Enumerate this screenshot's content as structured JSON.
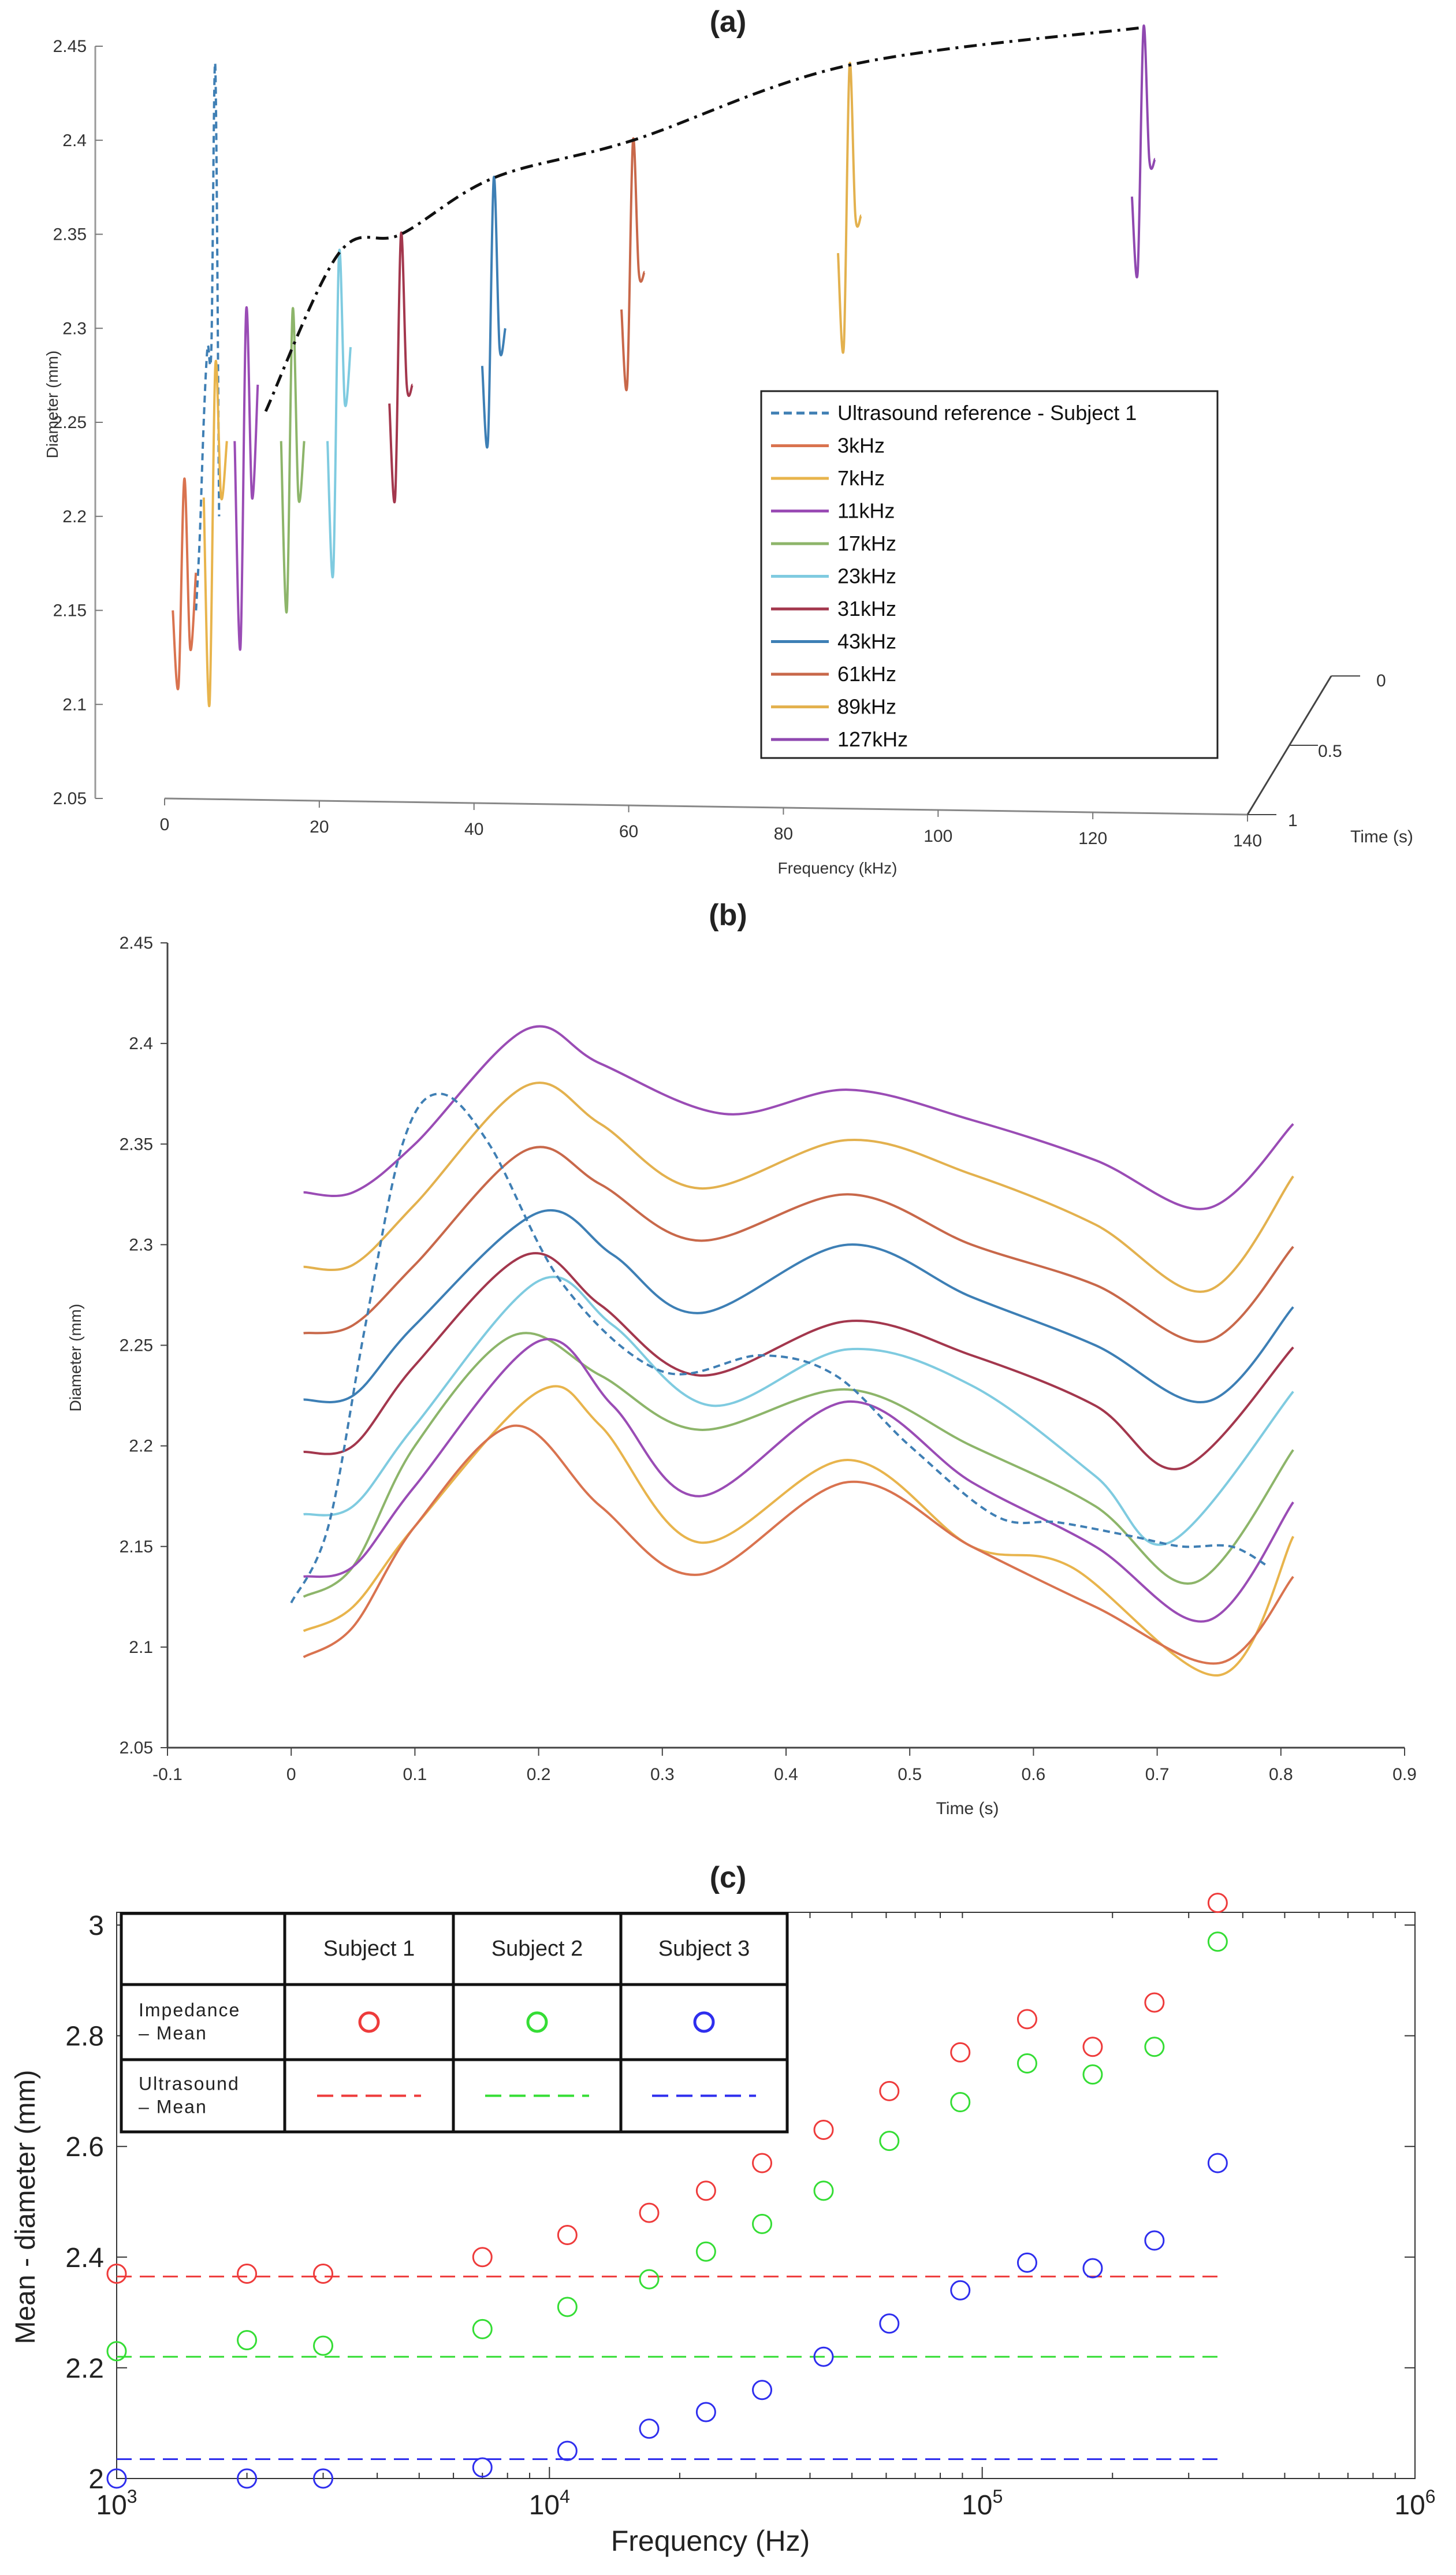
{
  "chart_data": [
    {
      "id": "a",
      "panel_label": "(a)",
      "type": "line",
      "subtype": "3d-waterfall",
      "xlabel": "Frequency (kHz)",
      "ylabel": "Diameter (mm)",
      "zlabel": "Time (s)",
      "xlim": [
        0,
        140
      ],
      "ylim": [
        2.05,
        2.45
      ],
      "zlim": [
        0,
        1
      ],
      "x_ticks": [
        "0",
        "20",
        "40",
        "60",
        "80",
        "100",
        "120",
        "140"
      ],
      "y_ticks": [
        "2.05",
        "2.1",
        "2.15",
        "2.2",
        "2.25",
        "2.3",
        "2.35",
        "2.4",
        "2.45"
      ],
      "z_ticks": [
        "0",
        "0.5",
        "1"
      ],
      "series": [
        {
          "name": "Ultrasound reference - Subject 1",
          "frequency_khz": 6,
          "color": "#3f7fb4",
          "dash": true,
          "values": [
            2.15,
            2.19,
            2.25,
            2.29,
            2.29,
            2.44,
            2.2
          ]
        },
        {
          "name": "3kHz",
          "frequency_khz": 3,
          "color": "#d9734f",
          "values": [
            2.15,
            2.11,
            2.22,
            2.13,
            2.17
          ]
        },
        {
          "name": "7kHz",
          "frequency_khz": 7,
          "color": "#e8b44c",
          "values": [
            2.21,
            2.1,
            2.28,
            2.21,
            2.24
          ]
        },
        {
          "name": "11kHz",
          "frequency_khz": 11,
          "color": "#9a4cb5",
          "values": [
            2.24,
            2.13,
            2.31,
            2.21,
            2.27
          ]
        },
        {
          "name": "17kHz",
          "frequency_khz": 17,
          "color": "#8db56a",
          "values": [
            2.24,
            2.15,
            2.31,
            2.21,
            2.24
          ]
        },
        {
          "name": "23kHz",
          "frequency_khz": 23,
          "color": "#7fcbe0",
          "values": [
            2.24,
            2.17,
            2.34,
            2.26,
            2.29
          ]
        },
        {
          "name": "31kHz",
          "frequency_khz": 31,
          "color": "#a3374d",
          "values": [
            2.26,
            2.21,
            2.35,
            2.27,
            2.27
          ]
        },
        {
          "name": "43kHz",
          "frequency_khz": 43,
          "color": "#3d7fb5",
          "values": [
            2.28,
            2.24,
            2.38,
            2.29,
            2.3
          ]
        },
        {
          "name": "61kHz",
          "frequency_khz": 61,
          "color": "#c8684a",
          "values": [
            2.31,
            2.27,
            2.4,
            2.33,
            2.33
          ]
        },
        {
          "name": "89kHz",
          "frequency_khz": 89,
          "color": "#e3b14e",
          "values": [
            2.34,
            2.29,
            2.44,
            2.36,
            2.36
          ]
        },
        {
          "name": "127kHz",
          "frequency_khz": 127,
          "color": "#8f48b0",
          "values": [
            2.37,
            2.33,
            2.46,
            2.39,
            2.39
          ]
        }
      ],
      "envelope": {
        "name": "peak envelope",
        "style": "dash-dot",
        "color": "#111111"
      }
    },
    {
      "id": "b",
      "panel_label": "(b)",
      "type": "line",
      "xlabel": "Time (s)",
      "ylabel": "Diameter (mm)",
      "xlim": [
        -0.1,
        0.9
      ],
      "ylim": [
        2.05,
        2.45
      ],
      "x_ticks": [
        "-0.1",
        "0",
        "0.1",
        "0.2",
        "0.3",
        "0.4",
        "0.5",
        "0.6",
        "0.7",
        "0.8",
        "0.9"
      ],
      "y_ticks": [
        "2.05",
        "2.1",
        "2.15",
        "2.2",
        "2.25",
        "2.3",
        "2.35",
        "2.4",
        "2.45"
      ],
      "series": [
        {
          "name": "127kHz",
          "color": "#9a4cb5",
          "x": [
            0.01,
            0.05,
            0.1,
            0.19,
            0.25,
            0.35,
            0.45,
            0.55,
            0.65,
            0.74,
            0.81
          ],
          "values": [
            2.326,
            2.326,
            2.35,
            2.407,
            2.39,
            2.365,
            2.377,
            2.362,
            2.342,
            2.318,
            2.36
          ]
        },
        {
          "name": "89kHz",
          "color": "#e3b14e",
          "x": [
            0.01,
            0.05,
            0.1,
            0.19,
            0.25,
            0.33,
            0.45,
            0.55,
            0.65,
            0.74,
            0.81
          ],
          "values": [
            2.289,
            2.29,
            2.32,
            2.379,
            2.36,
            2.328,
            2.352,
            2.335,
            2.31,
            2.277,
            2.334
          ]
        },
        {
          "name": "61kHz",
          "color": "#c8684a",
          "x": [
            0.01,
            0.05,
            0.1,
            0.19,
            0.25,
            0.33,
            0.45,
            0.55,
            0.65,
            0.74,
            0.81
          ],
          "values": [
            2.256,
            2.26,
            2.29,
            2.347,
            2.33,
            2.302,
            2.325,
            2.3,
            2.28,
            2.252,
            2.299
          ]
        },
        {
          "name": "43kHz",
          "color": "#3d7fb5",
          "x": [
            0.01,
            0.05,
            0.1,
            0.2,
            0.26,
            0.33,
            0.45,
            0.55,
            0.65,
            0.74,
            0.81
          ],
          "values": [
            2.223,
            2.225,
            2.26,
            2.316,
            2.295,
            2.266,
            2.3,
            2.274,
            2.25,
            2.222,
            2.269
          ]
        },
        {
          "name": "31kHz",
          "color": "#a3374d",
          "x": [
            0.01,
            0.05,
            0.1,
            0.19,
            0.25,
            0.33,
            0.45,
            0.55,
            0.65,
            0.72,
            0.81
          ],
          "values": [
            2.197,
            2.2,
            2.24,
            2.295,
            2.27,
            2.235,
            2.262,
            2.245,
            2.22,
            2.189,
            2.249
          ]
        },
        {
          "name": "23kHz",
          "color": "#7fcbe0",
          "x": [
            0.01,
            0.05,
            0.1,
            0.2,
            0.26,
            0.34,
            0.45,
            0.55,
            0.65,
            0.71,
            0.81
          ],
          "values": [
            2.166,
            2.17,
            2.21,
            2.282,
            2.26,
            2.22,
            2.248,
            2.23,
            2.185,
            2.152,
            2.227
          ]
        },
        {
          "name": "17kHz",
          "color": "#8db56a",
          "x": [
            0.01,
            0.05,
            0.1,
            0.18,
            0.25,
            0.33,
            0.45,
            0.55,
            0.65,
            0.73,
            0.81
          ],
          "values": [
            2.125,
            2.14,
            2.2,
            2.255,
            2.235,
            2.208,
            2.228,
            2.2,
            2.17,
            2.132,
            2.198
          ]
        },
        {
          "name": "11kHz",
          "color": "#9a4cb5",
          "x": [
            0.01,
            0.05,
            0.1,
            0.2,
            0.26,
            0.33,
            0.45,
            0.55,
            0.65,
            0.74,
            0.81
          ],
          "values": [
            2.135,
            2.14,
            2.18,
            2.252,
            2.22,
            2.175,
            2.222,
            2.182,
            2.15,
            2.113,
            2.172
          ]
        },
        {
          "name": "7kHz",
          "color": "#e8b44c",
          "x": [
            0.01,
            0.05,
            0.1,
            0.2,
            0.25,
            0.33,
            0.45,
            0.55,
            0.63,
            0.75,
            0.81
          ],
          "values": [
            2.108,
            2.12,
            2.16,
            2.227,
            2.21,
            2.152,
            2.193,
            2.15,
            2.14,
            2.086,
            2.155
          ]
        },
        {
          "name": "3kHz",
          "color": "#d9734f",
          "x": [
            0.01,
            0.05,
            0.1,
            0.18,
            0.25,
            0.33,
            0.45,
            0.55,
            0.65,
            0.75,
            0.81
          ],
          "values": [
            2.095,
            2.11,
            2.16,
            2.21,
            2.17,
            2.136,
            2.182,
            2.15,
            2.12,
            2.092,
            2.135
          ]
        },
        {
          "name": "Ultrasound reference - Subject 1",
          "color": "#3f7fb4",
          "dash": true,
          "x": [
            0.0,
            0.03,
            0.06,
            0.09,
            0.12,
            0.16,
            0.22,
            0.3,
            0.38,
            0.44,
            0.5,
            0.57,
            0.62,
            0.68,
            0.72,
            0.76,
            0.79
          ],
          "values": [
            2.122,
            2.16,
            2.26,
            2.35,
            2.375,
            2.35,
            2.28,
            2.237,
            2.245,
            2.235,
            2.2,
            2.165,
            2.162,
            2.155,
            2.15,
            2.15,
            2.14
          ]
        }
      ]
    },
    {
      "id": "c",
      "panel_label": "(c)",
      "type": "scatter",
      "x_scale": "log",
      "xlabel": "Frequency (Hz)",
      "ylabel": "Mean - diameter (mm)",
      "xlim": [
        1000,
        1000000
      ],
      "ylim": [
        2.0,
        3.0
      ],
      "x_ticks": [
        {
          "value": 1000,
          "base": "10",
          "exp": "3"
        },
        {
          "value": 10000,
          "base": "10",
          "exp": "4"
        },
        {
          "value": 100000,
          "base": "10",
          "exp": "5"
        },
        {
          "value": 1000000,
          "base": "10",
          "exp": "6"
        }
      ],
      "y_ticks": [
        "2",
        "2.2",
        "2.4",
        "2.6",
        "2.8",
        "3"
      ],
      "x": [
        1000,
        2000,
        3000,
        7000,
        11000,
        17000,
        23000,
        31000,
        43000,
        61000,
        89000,
        127000,
        180000,
        250000,
        350000
      ],
      "series": [
        {
          "name": "Subject 1",
          "color": "#ee3b3b",
          "values": [
            2.37,
            2.37,
            2.37,
            2.4,
            2.44,
            2.48,
            2.52,
            2.57,
            2.63,
            2.7,
            2.77,
            2.83,
            2.78,
            2.86,
            3.04
          ],
          "ultrasound_mean": 2.365
        },
        {
          "name": "Subject 2",
          "color": "#35dd35",
          "values": [
            2.23,
            2.25,
            2.24,
            2.27,
            2.31,
            2.36,
            2.41,
            2.46,
            2.52,
            2.61,
            2.68,
            2.75,
            2.73,
            2.78,
            2.97
          ],
          "ultrasound_mean": 2.22
        },
        {
          "name": "Subject 3",
          "color": "#2e2eee",
          "values": [
            2.0,
            2.0,
            2.0,
            2.02,
            2.05,
            2.09,
            2.12,
            2.16,
            2.22,
            2.28,
            2.34,
            2.39,
            2.38,
            2.43,
            2.57
          ],
          "ultrasound_mean": 2.035
        }
      ],
      "legend_table": {
        "columns": [
          "",
          "Subject 1",
          "Subject 2",
          "Subject 3"
        ],
        "rows": [
          {
            "label_lines": [
              "Impedance",
              "– Mean"
            ]
          },
          {
            "label_lines": [
              "Ultrasound",
              "– Mean"
            ]
          }
        ]
      }
    }
  ]
}
